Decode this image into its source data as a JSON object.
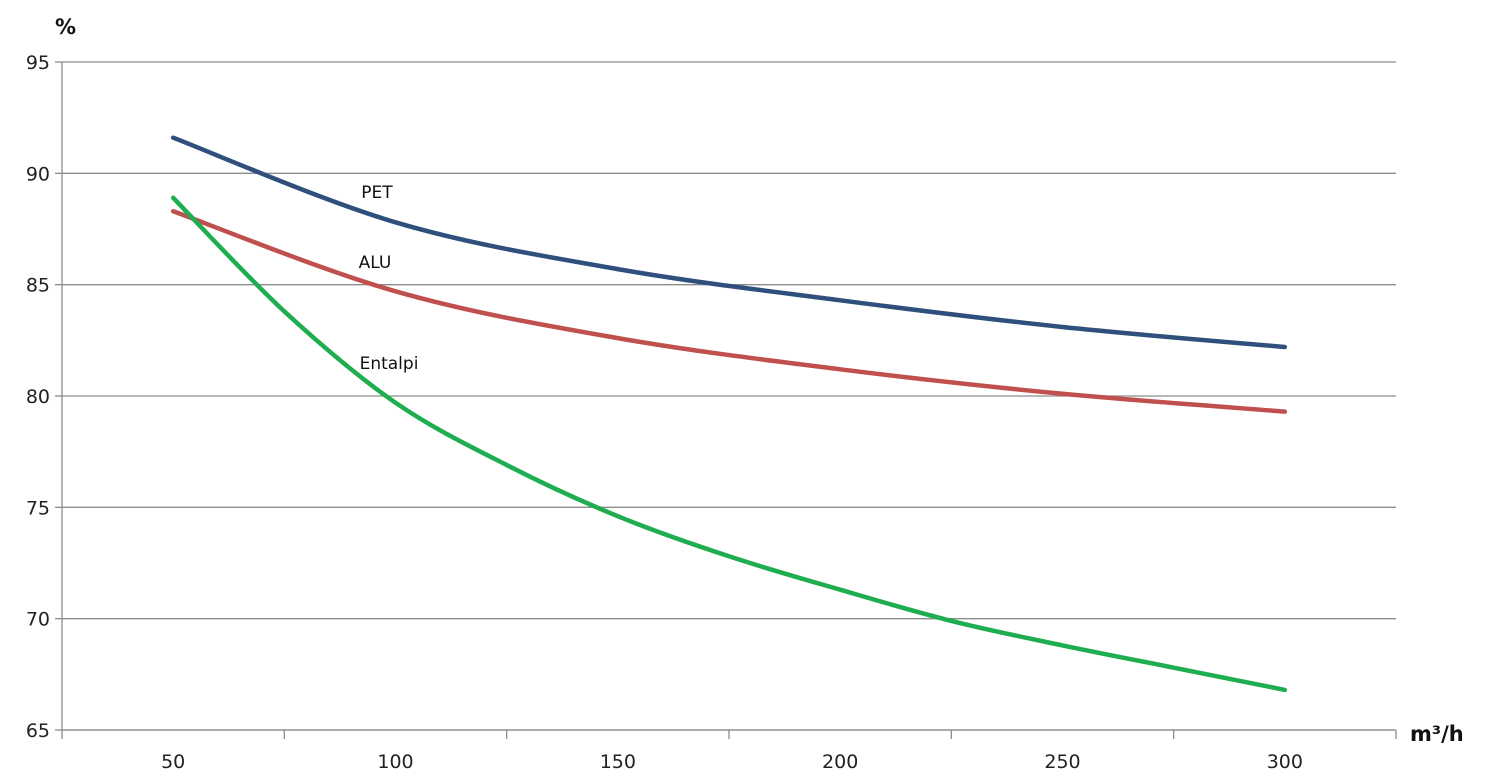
{
  "chart_data": {
    "type": "line",
    "ylabel": "%",
    "xlabel": "m³/h",
    "ylim": [
      65,
      95
    ],
    "yticks": [
      65,
      70,
      75,
      80,
      85,
      90,
      95
    ],
    "xlim": [
      25,
      325
    ],
    "xticks": [
      50,
      100,
      150,
      200,
      250,
      300
    ],
    "grid": true,
    "series": [
      {
        "name": "PET",
        "color": "#2f4f7c",
        "x": [
          50,
          100,
          150,
          200,
          250,
          300
        ],
        "y": [
          91.6,
          87.8,
          85.7,
          84.3,
          83.1,
          82.2
        ]
      },
      {
        "name": "ALU",
        "color": "#c0504d",
        "x": [
          50,
          100,
          150,
          200,
          250,
          300
        ],
        "y": [
          88.3,
          84.7,
          82.6,
          81.2,
          80.1,
          79.3
        ]
      },
      {
        "name": "Entalpi",
        "color": "#1ead4f",
        "x": [
          50,
          75,
          100,
          125,
          150,
          175,
          200,
          225,
          250,
          275,
          300
        ],
        "y": [
          88.9,
          83.8,
          79.7,
          76.9,
          74.6,
          72.8,
          71.3,
          69.9,
          68.8,
          67.8,
          66.8
        ]
      }
    ]
  }
}
